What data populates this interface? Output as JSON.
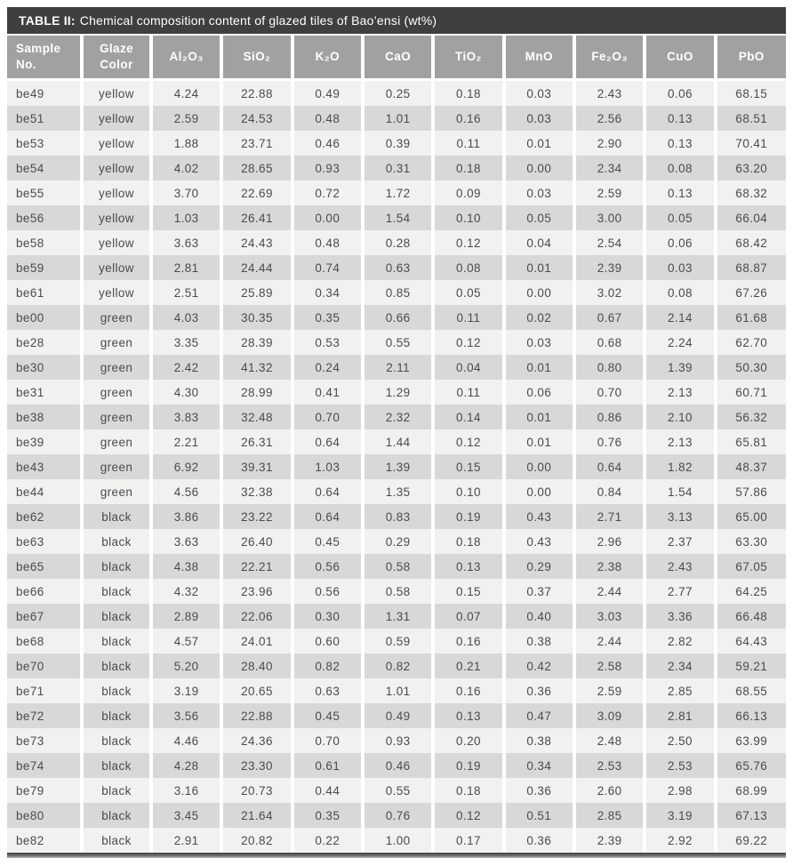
{
  "title": {
    "label": "TABLE II:",
    "text": "Chemical composition content of glazed tiles of Bao’ensi (wt%)"
  },
  "colors": {
    "title_bar": "#3f3f41",
    "header_bg": "#a1a1a1",
    "row_light": "#f1f1f0",
    "row_dark": "#d8d8d7",
    "body_text": "#4b4b4b",
    "header_text": "#ffffff"
  },
  "table": {
    "columns": [
      {
        "key": "sample-no",
        "label": "Sample No."
      },
      {
        "key": "glaze-color",
        "label": "Glaze Color"
      },
      {
        "key": "al2o3",
        "label": "Al₂O₃"
      },
      {
        "key": "sio2",
        "label": "SiO₂"
      },
      {
        "key": "k2o",
        "label": "K₂O"
      },
      {
        "key": "cao",
        "label": "CaO"
      },
      {
        "key": "tio2",
        "label": "TiO₂"
      },
      {
        "key": "mno",
        "label": "MnO"
      },
      {
        "key": "fe2o3",
        "label": "Fe₂O₃"
      },
      {
        "key": "cuo",
        "label": "CuO"
      },
      {
        "key": "pbo",
        "label": "PbO"
      }
    ],
    "rows": [
      [
        "be49",
        "yellow",
        "4.24",
        "22.88",
        "0.49",
        "0.25",
        "0.18",
        "0.03",
        "2.43",
        "0.06",
        "68.15"
      ],
      [
        "be51",
        "yellow",
        "2.59",
        "24.53",
        "0.48",
        "1.01",
        "0.16",
        "0.03",
        "2.56",
        "0.13",
        "68.51"
      ],
      [
        "be53",
        "yellow",
        "1.88",
        "23.71",
        "0.46",
        "0.39",
        "0.11",
        "0.01",
        "2.90",
        "0.13",
        "70.41"
      ],
      [
        "be54",
        "yellow",
        "4.02",
        "28.65",
        "0.93",
        "0.31",
        "0.18",
        "0.00",
        "2.34",
        "0.08",
        "63.20"
      ],
      [
        "be55",
        "yellow",
        "3.70",
        "22.69",
        "0.72",
        "1.72",
        "0.09",
        "0.03",
        "2.59",
        "0.13",
        "68.32"
      ],
      [
        "be56",
        "yellow",
        "1.03",
        "26.41",
        "0.00",
        "1.54",
        "0.10",
        "0.05",
        "3.00",
        "0.05",
        "66.04"
      ],
      [
        "be58",
        "yellow",
        "3.63",
        "24.43",
        "0.48",
        "0.28",
        "0.12",
        "0.04",
        "2.54",
        "0.06",
        "68.42"
      ],
      [
        "be59",
        "yellow",
        "2.81",
        "24.44",
        "0.74",
        "0.63",
        "0.08",
        "0.01",
        "2.39",
        "0.03",
        "68.87"
      ],
      [
        "be61",
        "yellow",
        "2.51",
        "25.89",
        "0.34",
        "0.85",
        "0.05",
        "0.00",
        "3.02",
        "0.08",
        "67.26"
      ],
      [
        "be00",
        "green",
        "4.03",
        "30.35",
        "0.35",
        "0.66",
        "0.11",
        "0.02",
        "0.67",
        "2.14",
        "61.68"
      ],
      [
        "be28",
        "green",
        "3.35",
        "28.39",
        "0.53",
        "0.55",
        "0.12",
        "0.03",
        "0.68",
        "2.24",
        "62.70"
      ],
      [
        "be30",
        "green",
        "2.42",
        "41.32",
        "0.24",
        "2.11",
        "0.04",
        "0.01",
        "0.80",
        "1.39",
        "50.30"
      ],
      [
        "be31",
        "green",
        "4.30",
        "28.99",
        "0.41",
        "1.29",
        "0.11",
        "0.06",
        "0.70",
        "2.13",
        "60.71"
      ],
      [
        "be38",
        "green",
        "3.83",
        "32.48",
        "0.70",
        "2.32",
        "0.14",
        "0.01",
        "0.86",
        "2.10",
        "56.32"
      ],
      [
        "be39",
        "green",
        "2.21",
        "26.31",
        "0.64",
        "1.44",
        "0.12",
        "0.01",
        "0.76",
        "2.13",
        "65.81"
      ],
      [
        "be43",
        "green",
        "6.92",
        "39.31",
        "1.03",
        "1.39",
        "0.15",
        "0.00",
        "0.64",
        "1.82",
        "48.37"
      ],
      [
        "be44",
        "green",
        "4.56",
        "32.38",
        "0.64",
        "1.35",
        "0.10",
        "0.00",
        "0.84",
        "1.54",
        "57.86"
      ],
      [
        "be62",
        "black",
        "3.86",
        "23.22",
        "0.64",
        "0.83",
        "0.19",
        "0.43",
        "2.71",
        "3.13",
        "65.00"
      ],
      [
        "be63",
        "black",
        "3.63",
        "26.40",
        "0.45",
        "0.29",
        "0.18",
        "0.43",
        "2.96",
        "2.37",
        "63.30"
      ],
      [
        "be65",
        "black",
        "4.38",
        "22.21",
        "0.56",
        "0.58",
        "0.13",
        "0.29",
        "2.38",
        "2.43",
        "67.05"
      ],
      [
        "be66",
        "black",
        "4.32",
        "23.96",
        "0.56",
        "0.58",
        "0.15",
        "0.37",
        "2.44",
        "2.77",
        "64.25"
      ],
      [
        "be67",
        "black",
        "2.89",
        "22.06",
        "0.30",
        "1.31",
        "0.07",
        "0.40",
        "3.03",
        "3.36",
        "66.48"
      ],
      [
        "be68",
        "black",
        "4.57",
        "24.01",
        "0.60",
        "0.59",
        "0.16",
        "0.38",
        "2.44",
        "2.82",
        "64.43"
      ],
      [
        "be70",
        "black",
        "5.20",
        "28.40",
        "0.82",
        "0.82",
        "0.21",
        "0.42",
        "2.58",
        "2.34",
        "59.21"
      ],
      [
        "be71",
        "black",
        "3.19",
        "20.65",
        "0.63",
        "1.01",
        "0.16",
        "0.36",
        "2.59",
        "2.85",
        "68.55"
      ],
      [
        "be72",
        "black",
        "3.56",
        "22.88",
        "0.45",
        "0.49",
        "0.13",
        "0.47",
        "3.09",
        "2.81",
        "66.13"
      ],
      [
        "be73",
        "black",
        "4.46",
        "24.36",
        "0.70",
        "0.93",
        "0.20",
        "0.38",
        "2.48",
        "2.50",
        "63.99"
      ],
      [
        "be74",
        "black",
        "4.28",
        "23.30",
        "0.61",
        "0.46",
        "0.19",
        "0.34",
        "2.53",
        "2.53",
        "65.76"
      ],
      [
        "be79",
        "black",
        "3.16",
        "20.73",
        "0.44",
        "0.55",
        "0.18",
        "0.36",
        "2.60",
        "2.98",
        "68.99"
      ],
      [
        "be80",
        "black",
        "3.45",
        "21.64",
        "0.35",
        "0.76",
        "0.12",
        "0.51",
        "2.85",
        "3.19",
        "67.13"
      ],
      [
        "be82",
        "black",
        "2.91",
        "20.82",
        "0.22",
        "1.00",
        "0.17",
        "0.36",
        "2.39",
        "2.92",
        "69.22"
      ]
    ]
  }
}
